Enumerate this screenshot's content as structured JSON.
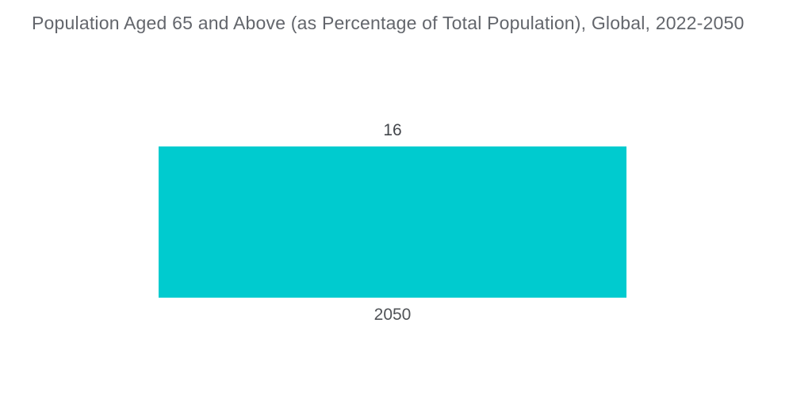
{
  "chart_data": {
    "type": "bar",
    "title": "Population Aged 65 and Above (as Percentage of Total Population), Global, 2022-2050",
    "categories": [
      "2050"
    ],
    "values": [
      16
    ],
    "value_labels": [
      "16"
    ],
    "xlabel": "",
    "ylabel": "",
    "ylim": [
      0,
      16
    ],
    "grid": false,
    "legend": false,
    "axes_hidden": true,
    "value_label_position": "above-bar",
    "category_label_position": "below-bar",
    "colors": {
      "bar": "#00cbcf",
      "title_text": "#63666c",
      "value_text": "#43464b",
      "category_text": "#505357",
      "background": "#ffffff"
    }
  }
}
